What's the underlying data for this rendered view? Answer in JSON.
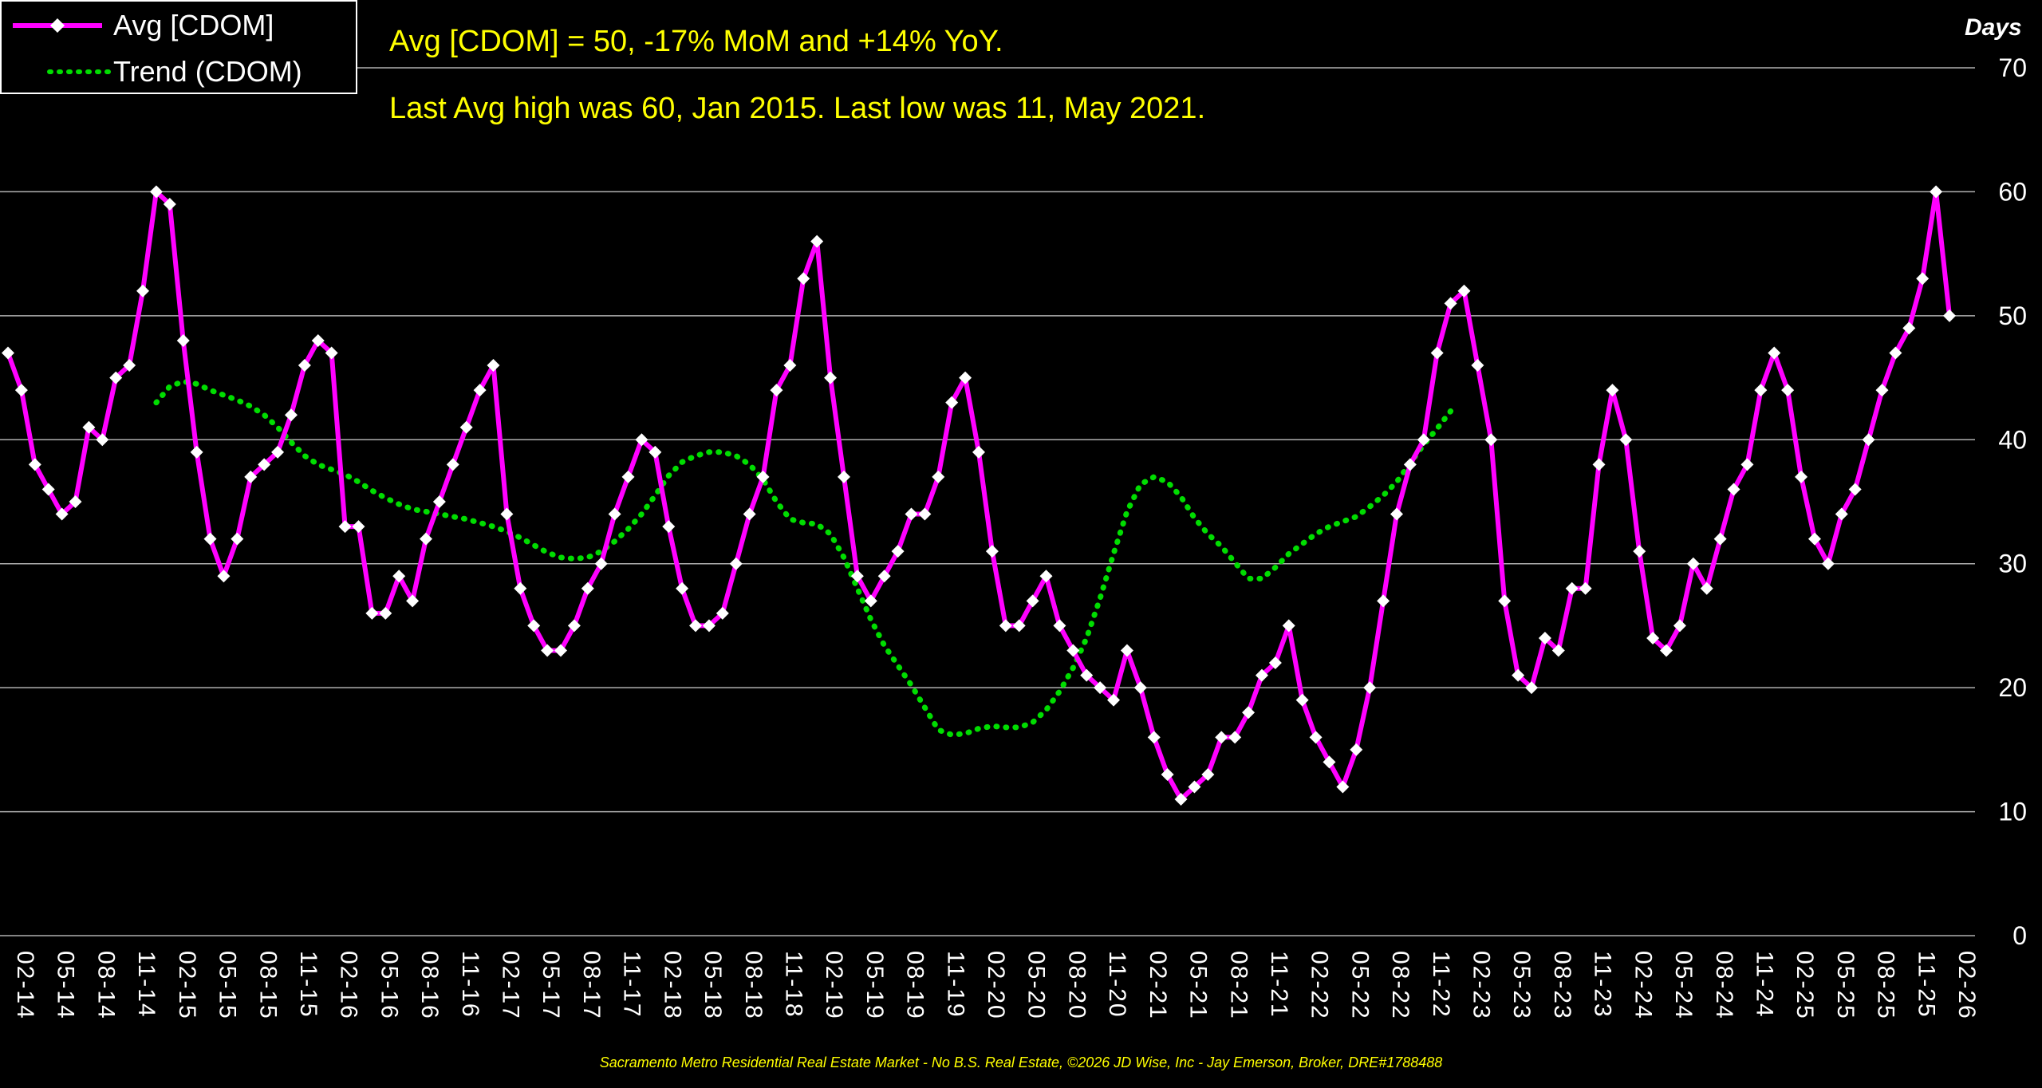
{
  "chart_data": {
    "type": "line",
    "headline": "Avg [CDOM] = 50, -17% MoM and +14% YoY.",
    "subheadline": "Last Avg high was 60, Jan 2015. Last low was 11, May 2021.",
    "ylabel": "Days",
    "footer": "Sacramento Metro Residential Real Estate Market - No B.S. Real Estate, ©2026 JD Wise, Inc - Jay Emerson, Broker, DRE#1788488",
    "ylim": [
      0,
      70
    ],
    "yticks": [
      0,
      10,
      20,
      30,
      40,
      50,
      60,
      70
    ],
    "grid": true,
    "legend_position": "top-left",
    "x_tick_labels": [
      "02-14",
      "05-14",
      "08-14",
      "11-14",
      "02-15",
      "05-15",
      "08-15",
      "11-15",
      "02-16",
      "05-16",
      "08-16",
      "11-16",
      "02-17",
      "05-17",
      "08-17",
      "11-17",
      "02-18",
      "05-18",
      "08-18",
      "11-18",
      "02-19",
      "05-19",
      "08-19",
      "11-19",
      "02-20",
      "05-20",
      "08-20",
      "11-20",
      "02-21",
      "05-21",
      "08-21",
      "11-21",
      "02-22",
      "05-22",
      "08-22",
      "11-22",
      "02-23",
      "05-23",
      "08-23",
      "11-23",
      "02-24",
      "05-24",
      "08-24",
      "11-24",
      "02-25",
      "05-25",
      "08-25",
      "11-25",
      "02-26"
    ],
    "series": [
      {
        "name": "Avg [CDOM]",
        "color": "#FF00FF",
        "marker_color": "#FFFFFF",
        "marker": "diamond",
        "style": "solid",
        "values": [
          47,
          44,
          38,
          36,
          34,
          35,
          41,
          40,
          45,
          46,
          52,
          60,
          59,
          48,
          39,
          32,
          29,
          32,
          37,
          38,
          39,
          42,
          46,
          48,
          47,
          33,
          33,
          26,
          26,
          29,
          27,
          32,
          35,
          38,
          41,
          44,
          46,
          34,
          28,
          25,
          23,
          23,
          25,
          28,
          30,
          34,
          37,
          40,
          39,
          33,
          28,
          25,
          25,
          26,
          30,
          34,
          37,
          44,
          46,
          53,
          56,
          45,
          37,
          29,
          27,
          29,
          31,
          34,
          34,
          37,
          43,
          45,
          39,
          31,
          25,
          25,
          27,
          29,
          25,
          23,
          21,
          20,
          19,
          23,
          20,
          16,
          13,
          11,
          12,
          13,
          16,
          16,
          18,
          21,
          22,
          25,
          19,
          16,
          14,
          12,
          15,
          20,
          27,
          34,
          38,
          40,
          47,
          51,
          52,
          46,
          40,
          27,
          21,
          20,
          24,
          23,
          28,
          28,
          38,
          44,
          40,
          31,
          24,
          23,
          25,
          30,
          28,
          32,
          36,
          38,
          44,
          47,
          44,
          37,
          32,
          30,
          34,
          36,
          40,
          44,
          47,
          49,
          53,
          60,
          50
        ]
      },
      {
        "name": "Trend (CDOM)",
        "color": "#00DD00",
        "style": "dotted",
        "start_index": 11,
        "values": [
          43,
          44.3,
          44.7,
          44.5,
          44,
          43.6,
          43.2,
          42.7,
          42,
          41,
          39.8,
          38.7,
          38,
          37.6,
          37.2,
          36.6,
          35.9,
          35.3,
          34.8,
          34.4,
          34.2,
          34,
          33.8,
          33.6,
          33.3,
          33,
          32.6,
          32.1,
          31.5,
          30.9,
          30.5,
          30.4,
          30.5,
          31,
          31.8,
          32.8,
          34,
          35.5,
          37.1,
          38.2,
          38.7,
          39,
          39,
          38.7,
          38,
          36.8,
          35,
          33.6,
          33.3,
          33.2,
          32.4,
          30.5,
          28,
          25.5,
          23.4,
          21.8,
          20.2,
          18.4,
          16.6,
          16.2,
          16.3,
          16.7,
          16.9,
          16.8,
          16.8,
          17.2,
          18.2,
          19.7,
          21.6,
          24,
          27.2,
          30.8,
          34.2,
          36.4,
          37,
          36.6,
          35.4,
          33.7,
          32.4,
          31.4,
          30.1,
          28.8,
          28.8,
          29.7,
          30.8,
          31.6,
          32.4,
          33,
          33.4,
          33.8,
          34.6,
          35.5,
          36.6,
          38.1,
          39.6,
          40.9,
          42.3
        ]
      }
    ]
  }
}
